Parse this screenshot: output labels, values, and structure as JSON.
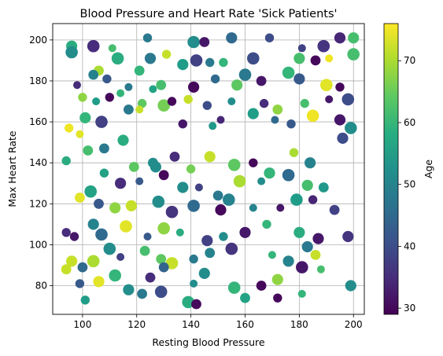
{
  "chart_data": {
    "type": "scatter",
    "title": "Blood Pressure and Heart Rate 'Sick Patients'",
    "xlabel": "Resting Blood Pressure",
    "ylabel": "Max Heart Rate",
    "xlim": [
      89,
      204
    ],
    "ylim": [
      66,
      208
    ],
    "xticks": [
      100,
      120,
      140,
      160,
      180,
      200
    ],
    "yticks": [
      80,
      100,
      120,
      140,
      160,
      180,
      200
    ],
    "grid": true,
    "colorbar": {
      "label": "Age",
      "range": [
        29,
        76
      ],
      "ticks": [
        30,
        40,
        50,
        60,
        70
      ],
      "colormap": "viridis"
    },
    "points": [
      {
        "x": 96,
        "y": 197,
        "age": 58
      },
      {
        "x": 104,
        "y": 197,
        "age": 35
      },
      {
        "x": 111,
        "y": 196,
        "age": 62
      },
      {
        "x": 124,
        "y": 201,
        "age": 48
      },
      {
        "x": 131,
        "y": 193,
        "age": 72
      },
      {
        "x": 141,
        "y": 199,
        "age": 52
      },
      {
        "x": 145,
        "y": 199,
        "age": 32
      },
      {
        "x": 155,
        "y": 201,
        "age": 45
      },
      {
        "x": 169,
        "y": 201,
        "age": 40
      },
      {
        "x": 181,
        "y": 196,
        "age": 38
      },
      {
        "x": 189,
        "y": 197,
        "age": 36
      },
      {
        "x": 195,
        "y": 201,
        "age": 34
      },
      {
        "x": 200,
        "y": 201,
        "age": 62
      },
      {
        "x": 200,
        "y": 193,
        "age": 62
      },
      {
        "x": 96,
        "y": 194,
        "age": 52
      },
      {
        "x": 106,
        "y": 185,
        "age": 70
      },
      {
        "x": 113,
        "y": 191,
        "age": 58
      },
      {
        "x": 121,
        "y": 185,
        "age": 60
      },
      {
        "x": 125,
        "y": 191,
        "age": 48
      },
      {
        "x": 137,
        "y": 188,
        "age": 55
      },
      {
        "x": 142,
        "y": 190,
        "age": 38
      },
      {
        "x": 147,
        "y": 189,
        "age": 48
      },
      {
        "x": 152,
        "y": 189,
        "age": 60
      },
      {
        "x": 163,
        "y": 191,
        "age": 40
      },
      {
        "x": 176,
        "y": 184,
        "age": 60
      },
      {
        "x": 186,
        "y": 190,
        "age": 30
      },
      {
        "x": 191,
        "y": 191,
        "age": 75
      },
      {
        "x": 180,
        "y": 191,
        "age": 62
      },
      {
        "x": 98,
        "y": 178,
        "age": 35
      },
      {
        "x": 104,
        "y": 183,
        "age": 50
      },
      {
        "x": 109,
        "y": 181,
        "age": 42
      },
      {
        "x": 117,
        "y": 177,
        "age": 48
      },
      {
        "x": 126,
        "y": 176,
        "age": 56
      },
      {
        "x": 129,
        "y": 178,
        "age": 62
      },
      {
        "x": 141,
        "y": 177,
        "age": 30
      },
      {
        "x": 149,
        "y": 181,
        "age": 45
      },
      {
        "x": 157,
        "y": 178,
        "age": 64
      },
      {
        "x": 160,
        "y": 183,
        "age": 48
      },
      {
        "x": 166,
        "y": 180,
        "age": 32
      },
      {
        "x": 180,
        "y": 181,
        "age": 42
      },
      {
        "x": 190,
        "y": 178,
        "age": 74
      },
      {
        "x": 195,
        "y": 177,
        "age": 30
      },
      {
        "x": 100,
        "y": 172,
        "age": 68
      },
      {
        "x": 105,
        "y": 170,
        "age": 55
      },
      {
        "x": 110,
        "y": 172,
        "age": 30
      },
      {
        "x": 114,
        "y": 174,
        "age": 60
      },
      {
        "x": 122,
        "y": 169,
        "age": 64
      },
      {
        "x": 130,
        "y": 168,
        "age": 66
      },
      {
        "x": 133,
        "y": 170,
        "age": 30
      },
      {
        "x": 139,
        "y": 171,
        "age": 72
      },
      {
        "x": 146,
        "y": 168,
        "age": 40
      },
      {
        "x": 155,
        "y": 170,
        "age": 52
      },
      {
        "x": 167,
        "y": 169,
        "age": 35
      },
      {
        "x": 172,
        "y": 166,
        "age": 68
      },
      {
        "x": 182,
        "y": 169,
        "age": 62
      },
      {
        "x": 191,
        "y": 171,
        "age": 32
      },
      {
        "x": 198,
        "y": 171,
        "age": 40
      },
      {
        "x": 95,
        "y": 157,
        "age": 75
      },
      {
        "x": 99,
        "y": 154,
        "age": 74
      },
      {
        "x": 101,
        "y": 162,
        "age": 60
      },
      {
        "x": 107,
        "y": 160,
        "age": 38
      },
      {
        "x": 117,
        "y": 166,
        "age": 48
      },
      {
        "x": 121,
        "y": 166,
        "age": 72
      },
      {
        "x": 137,
        "y": 159,
        "age": 32
      },
      {
        "x": 148,
        "y": 158,
        "age": 54
      },
      {
        "x": 151,
        "y": 161,
        "age": 34
      },
      {
        "x": 163,
        "y": 164,
        "age": 55
      },
      {
        "x": 171,
        "y": 161,
        "age": 45
      },
      {
        "x": 177,
        "y": 159,
        "age": 42
      },
      {
        "x": 185,
        "y": 163,
        "age": 75
      },
      {
        "x": 195,
        "y": 161,
        "age": 32
      },
      {
        "x": 199,
        "y": 157,
        "age": 52
      },
      {
        "x": 102,
        "y": 146,
        "age": 62
      },
      {
        "x": 108,
        "y": 147,
        "age": 48
      },
      {
        "x": 115,
        "y": 151,
        "age": 58
      },
      {
        "x": 119,
        "y": 138,
        "age": 64
      },
      {
        "x": 126,
        "y": 140,
        "age": 52
      },
      {
        "x": 134,
        "y": 143,
        "age": 35
      },
      {
        "x": 140,
        "y": 137,
        "age": 66
      },
      {
        "x": 147,
        "y": 143,
        "age": 72
      },
      {
        "x": 156,
        "y": 139,
        "age": 64
      },
      {
        "x": 163,
        "y": 140,
        "age": 30
      },
      {
        "x": 169,
        "y": 135,
        "age": 60
      },
      {
        "x": 178,
        "y": 145,
        "age": 70
      },
      {
        "x": 184,
        "y": 140,
        "age": 50
      },
      {
        "x": 196,
        "y": 152,
        "age": 40
      },
      {
        "x": 94,
        "y": 141,
        "age": 58
      },
      {
        "x": 103,
        "y": 126,
        "age": 56
      },
      {
        "x": 108,
        "y": 135,
        "age": 56
      },
      {
        "x": 114,
        "y": 130,
        "age": 35
      },
      {
        "x": 121,
        "y": 131,
        "age": 42
      },
      {
        "x": 127,
        "y": 138,
        "age": 52
      },
      {
        "x": 130,
        "y": 134,
        "age": 30
      },
      {
        "x": 137,
        "y": 128,
        "age": 52
      },
      {
        "x": 143,
        "y": 128,
        "age": 38
      },
      {
        "x": 150,
        "y": 124,
        "age": 48
      },
      {
        "x": 158,
        "y": 131,
        "age": 70
      },
      {
        "x": 166,
        "y": 131,
        "age": 52
      },
      {
        "x": 176,
        "y": 134,
        "age": 45
      },
      {
        "x": 183,
        "y": 129,
        "age": 62
      },
      {
        "x": 189,
        "y": 128,
        "age": 54
      },
      {
        "x": 99,
        "y": 123,
        "age": 74
      },
      {
        "x": 106,
        "y": 120,
        "age": 42
      },
      {
        "x": 112,
        "y": 118,
        "age": 68
      },
      {
        "x": 118,
        "y": 119,
        "age": 72
      },
      {
        "x": 128,
        "y": 121,
        "age": 52
      },
      {
        "x": 133,
        "y": 116,
        "age": 36
      },
      {
        "x": 141,
        "y": 119,
        "age": 45
      },
      {
        "x": 151,
        "y": 117,
        "age": 30
      },
      {
        "x": 154,
        "y": 122,
        "age": 50
      },
      {
        "x": 163,
        "y": 118,
        "age": 50
      },
      {
        "x": 173,
        "y": 118,
        "age": 32
      },
      {
        "x": 179,
        "y": 122,
        "age": 55
      },
      {
        "x": 185,
        "y": 122,
        "age": 34
      },
      {
        "x": 193,
        "y": 117,
        "age": 38
      },
      {
        "x": 94,
        "y": 106,
        "age": 35
      },
      {
        "x": 97,
        "y": 104,
        "age": 32
      },
      {
        "x": 104,
        "y": 110,
        "age": 50
      },
      {
        "x": 107,
        "y": 105,
        "age": 45
      },
      {
        "x": 116,
        "y": 109,
        "age": 74
      },
      {
        "x": 124,
        "y": 104,
        "age": 42
      },
      {
        "x": 130,
        "y": 108,
        "age": 68
      },
      {
        "x": 136,
        "y": 106,
        "age": 58
      },
      {
        "x": 146,
        "y": 102,
        "age": 38
      },
      {
        "x": 152,
        "y": 104,
        "age": 52
      },
      {
        "x": 160,
        "y": 106,
        "age": 32
      },
      {
        "x": 168,
        "y": 110,
        "age": 60
      },
      {
        "x": 180,
        "y": 106,
        "age": 58
      },
      {
        "x": 187,
        "y": 103,
        "age": 32
      },
      {
        "x": 198,
        "y": 104,
        "age": 36
      },
      {
        "x": 96,
        "y": 92,
        "age": 72
      },
      {
        "x": 100,
        "y": 89,
        "age": 45
      },
      {
        "x": 104,
        "y": 92,
        "age": 70
      },
      {
        "x": 110,
        "y": 98,
        "age": 52
      },
      {
        "x": 114,
        "y": 94,
        "age": 38
      },
      {
        "x": 123,
        "y": 97,
        "age": 62
      },
      {
        "x": 129,
        "y": 93,
        "age": 64
      },
      {
        "x": 133,
        "y": 91,
        "age": 72
      },
      {
        "x": 141,
        "y": 93,
        "age": 48
      },
      {
        "x": 147,
        "y": 96,
        "age": 50
      },
      {
        "x": 155,
        "y": 98,
        "age": 36
      },
      {
        "x": 170,
        "y": 95,
        "age": 60
      },
      {
        "x": 176,
        "y": 92,
        "age": 50
      },
      {
        "x": 183,
        "y": 99,
        "age": 48
      },
      {
        "x": 186,
        "y": 95,
        "age": 72
      },
      {
        "x": 94,
        "y": 88,
        "age": 72
      },
      {
        "x": 99,
        "y": 81,
        "age": 42
      },
      {
        "x": 106,
        "y": 82,
        "age": 74
      },
      {
        "x": 112,
        "y": 85,
        "age": 60
      },
      {
        "x": 117,
        "y": 78,
        "age": 52
      },
      {
        "x": 125,
        "y": 84,
        "age": 35
      },
      {
        "x": 130,
        "y": 89,
        "age": 44
      },
      {
        "x": 141,
        "y": 81,
        "age": 52
      },
      {
        "x": 145,
        "y": 86,
        "age": 52
      },
      {
        "x": 156,
        "y": 79,
        "age": 60
      },
      {
        "x": 166,
        "y": 80,
        "age": 30
      },
      {
        "x": 172,
        "y": 83,
        "age": 68
      },
      {
        "x": 181,
        "y": 89,
        "age": 32
      },
      {
        "x": 188,
        "y": 88,
        "age": 62
      },
      {
        "x": 199,
        "y": 80,
        "age": 52
      },
      {
        "x": 101,
        "y": 73,
        "age": 55
      },
      {
        "x": 122,
        "y": 76,
        "age": 48
      },
      {
        "x": 129,
        "y": 77,
        "age": 40
      },
      {
        "x": 139,
        "y": 72,
        "age": 58
      },
      {
        "x": 142,
        "y": 71,
        "age": 30
      },
      {
        "x": 160,
        "y": 74,
        "age": 56
      },
      {
        "x": 172,
        "y": 74,
        "age": 30
      },
      {
        "x": 181,
        "y": 76,
        "age": 60
      }
    ]
  }
}
